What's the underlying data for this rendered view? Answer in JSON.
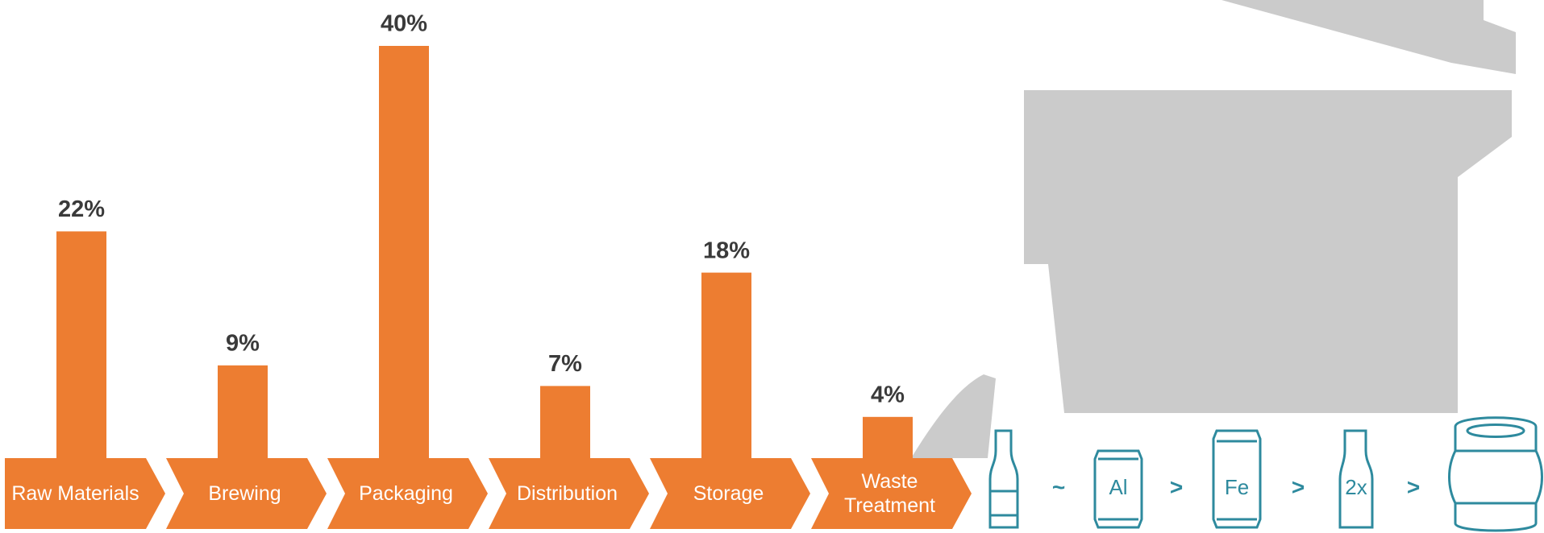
{
  "chart_data": {
    "type": "bar",
    "categories": [
      "Raw Materials",
      "Brewing",
      "Packaging",
      "Distribution",
      "Storage",
      "Waste Treatment"
    ],
    "values": [
      22,
      9,
      40,
      7,
      18,
      4
    ],
    "value_labels": [
      "22%",
      "9%",
      "40%",
      "7%",
      "18%",
      "4%"
    ],
    "color": "#ed7d31"
  },
  "comparison": {
    "symbols": [
      "~",
      "Al",
      ">",
      "Fe",
      ">",
      "2x",
      ">"
    ],
    "color": "#2e8a9e"
  }
}
